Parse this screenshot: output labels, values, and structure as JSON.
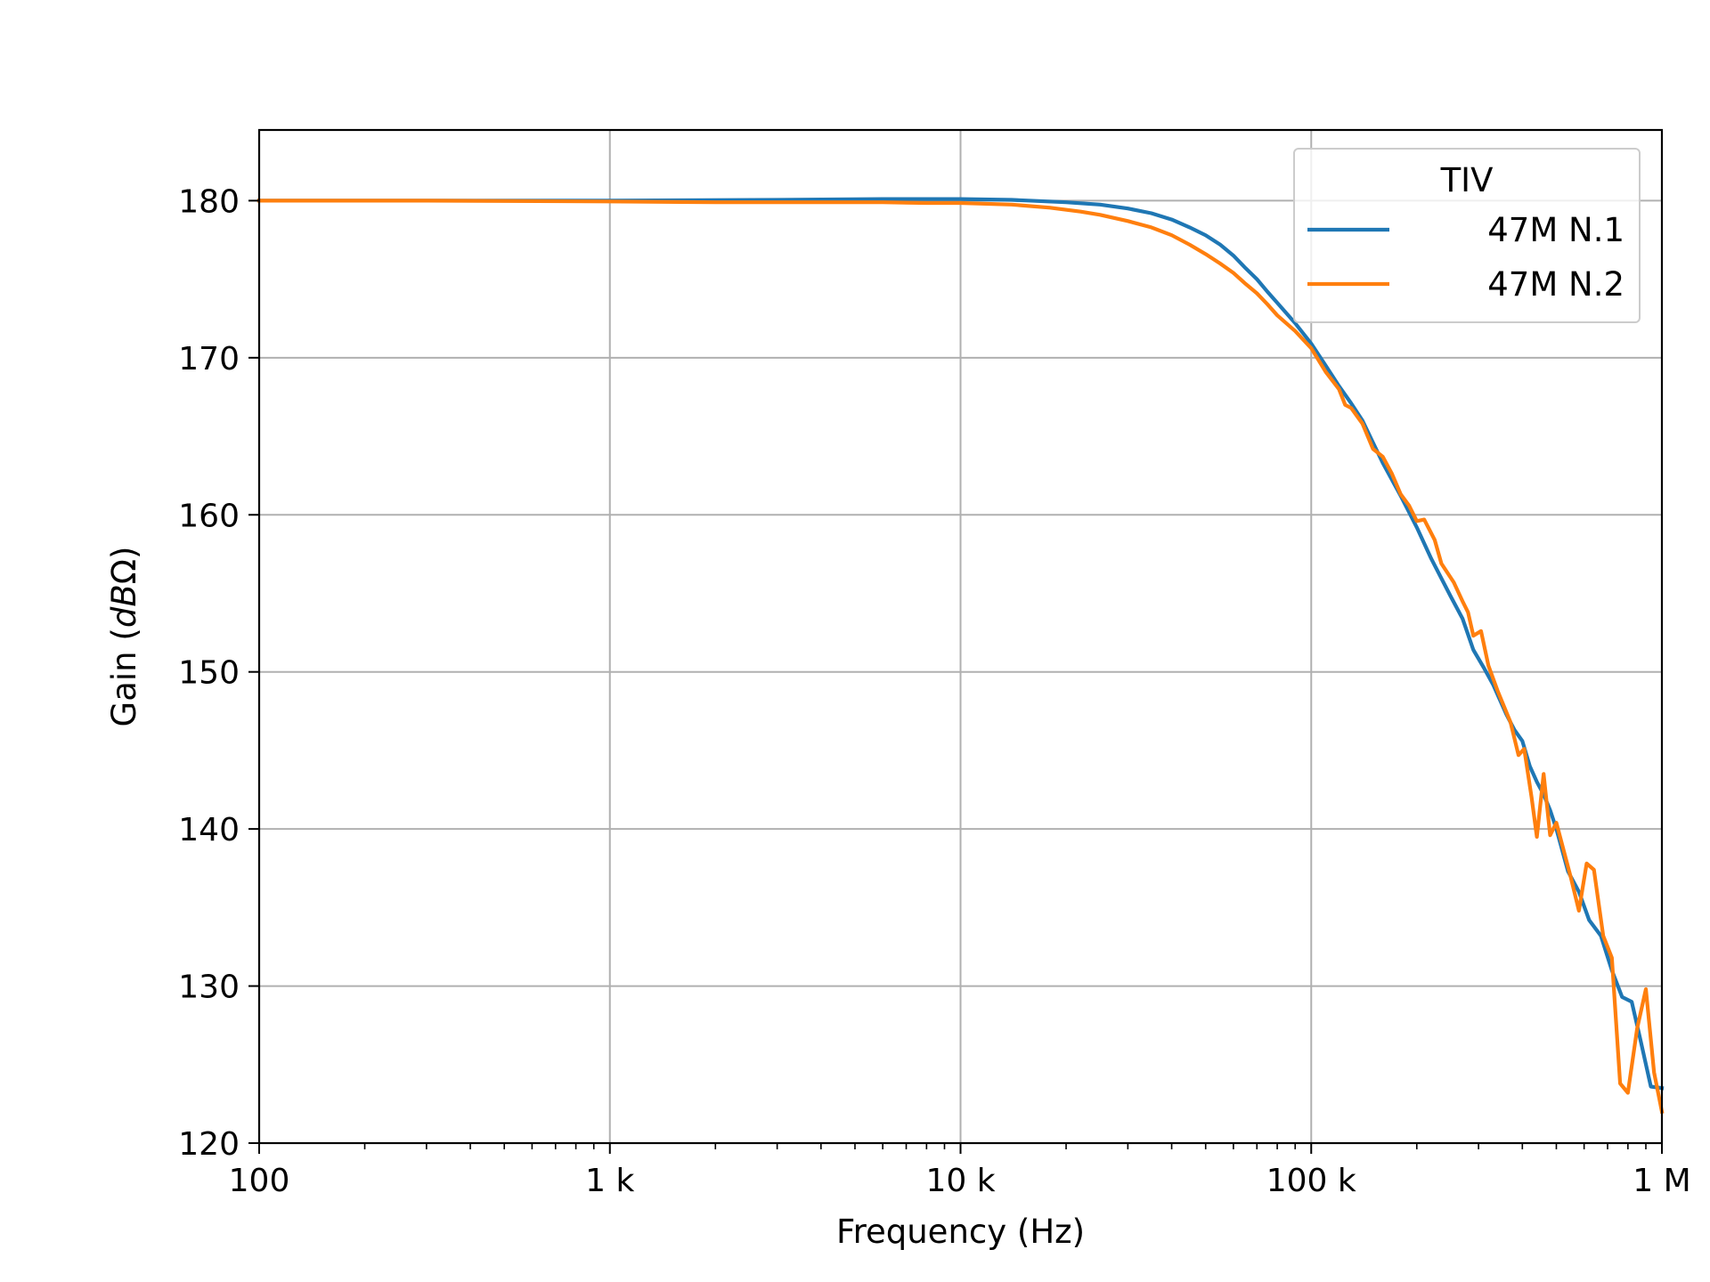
{
  "chart_data": {
    "type": "line",
    "title": "",
    "xlabel": "Frequency (Hz)",
    "ylabel_main": "Gain (",
    "ylabel_italic": "dB",
    "ylabel_tail": "Ω)",
    "x_scale": "log",
    "xlim": [
      100,
      1000000
    ],
    "ylim": [
      120,
      184.5
    ],
    "grid": true,
    "x_ticks": [
      {
        "value": 100,
        "label": "100"
      },
      {
        "value": 1000,
        "label": "1 k"
      },
      {
        "value": 10000,
        "label": "10 k"
      },
      {
        "value": 100000,
        "label": "100 k"
      },
      {
        "value": 1000000,
        "label": "1 M"
      }
    ],
    "y_ticks": [
      {
        "value": 120,
        "label": "120"
      },
      {
        "value": 130,
        "label": "130"
      },
      {
        "value": 140,
        "label": "140"
      },
      {
        "value": 150,
        "label": "150"
      },
      {
        "value": 160,
        "label": "160"
      },
      {
        "value": 170,
        "label": "170"
      },
      {
        "value": 180,
        "label": "180"
      }
    ],
    "legend": {
      "title": "TIV",
      "placement": "upper right"
    },
    "series": [
      {
        "name": "47M N.1",
        "color": "#1f77b4",
        "points": [
          [
            100,
            180.0
          ],
          [
            300,
            180.0
          ],
          [
            1000,
            180.0
          ],
          [
            3000,
            180.05
          ],
          [
            6000,
            180.1
          ],
          [
            10000,
            180.1
          ],
          [
            14000,
            180.05
          ],
          [
            20000,
            179.9
          ],
          [
            25000,
            179.75
          ],
          [
            30000,
            179.5
          ],
          [
            35000,
            179.2
          ],
          [
            40000,
            178.8
          ],
          [
            45000,
            178.3
          ],
          [
            50000,
            177.8
          ],
          [
            55000,
            177.2
          ],
          [
            60000,
            176.5
          ],
          [
            65000,
            175.7
          ],
          [
            70000,
            175.0
          ],
          [
            75000,
            174.2
          ],
          [
            80000,
            173.5
          ],
          [
            90000,
            172.2
          ],
          [
            100000,
            170.9
          ],
          [
            110000,
            169.5
          ],
          [
            120000,
            168.2
          ],
          [
            130000,
            167.1
          ],
          [
            140000,
            166.0
          ],
          [
            150000,
            164.6
          ],
          [
            160000,
            163.3
          ],
          [
            180000,
            161.2
          ],
          [
            200000,
            159.2
          ],
          [
            220000,
            157.2
          ],
          [
            250000,
            154.8
          ],
          [
            270000,
            153.4
          ],
          [
            290000,
            151.4
          ],
          [
            310000,
            150.3
          ],
          [
            330000,
            149.2
          ],
          [
            360000,
            147.3
          ],
          [
            380000,
            146.3
          ],
          [
            400000,
            145.6
          ],
          [
            420000,
            144.0
          ],
          [
            440000,
            143.0
          ],
          [
            460000,
            142.2
          ],
          [
            480000,
            141.2
          ],
          [
            500000,
            140.0
          ],
          [
            540000,
            137.3
          ],
          [
            580000,
            136.0
          ],
          [
            620000,
            134.2
          ],
          [
            670000,
            133.2
          ],
          [
            720000,
            131.0
          ],
          [
            770000,
            129.3
          ],
          [
            820000,
            129.0
          ],
          [
            870000,
            126.5
          ],
          [
            930000,
            123.6
          ],
          [
            1000000,
            123.5
          ]
        ]
      },
      {
        "name": "47M N.2",
        "color": "#ff7f0e",
        "points": [
          [
            100,
            180.0
          ],
          [
            300,
            180.0
          ],
          [
            1000,
            179.95
          ],
          [
            2000,
            179.9
          ],
          [
            3000,
            179.9
          ],
          [
            6000,
            179.9
          ],
          [
            8000,
            179.85
          ],
          [
            10000,
            179.85
          ],
          [
            14000,
            179.75
          ],
          [
            18000,
            179.55
          ],
          [
            22000,
            179.3
          ],
          [
            25000,
            179.1
          ],
          [
            30000,
            178.7
          ],
          [
            35000,
            178.3
          ],
          [
            40000,
            177.8
          ],
          [
            45000,
            177.2
          ],
          [
            50000,
            176.6
          ],
          [
            55000,
            176.0
          ],
          [
            60000,
            175.4
          ],
          [
            65000,
            174.7
          ],
          [
            70000,
            174.1
          ],
          [
            75000,
            173.4
          ],
          [
            80000,
            172.7
          ],
          [
            90000,
            171.7
          ],
          [
            100000,
            170.6
          ],
          [
            110000,
            169.1
          ],
          [
            120000,
            168.0
          ],
          [
            125000,
            167.0
          ],
          [
            130000,
            166.8
          ],
          [
            140000,
            165.8
          ],
          [
            150000,
            164.2
          ],
          [
            160000,
            163.7
          ],
          [
            170000,
            162.6
          ],
          [
            180000,
            161.3
          ],
          [
            190000,
            160.6
          ],
          [
            200000,
            159.6
          ],
          [
            210000,
            159.7
          ],
          [
            225000,
            158.4
          ],
          [
            235000,
            156.9
          ],
          [
            255000,
            155.7
          ],
          [
            270000,
            154.5
          ],
          [
            280000,
            153.8
          ],
          [
            290000,
            152.3
          ],
          [
            305000,
            152.6
          ],
          [
            320000,
            150.4
          ],
          [
            340000,
            148.8
          ],
          [
            370000,
            146.8
          ],
          [
            390000,
            144.7
          ],
          [
            405000,
            145.1
          ],
          [
            425000,
            142.0
          ],
          [
            440000,
            139.5
          ],
          [
            460000,
            143.5
          ],
          [
            480000,
            139.6
          ],
          [
            500000,
            140.4
          ],
          [
            550000,
            136.9
          ],
          [
            580000,
            134.8
          ],
          [
            610000,
            137.8
          ],
          [
            640000,
            137.4
          ],
          [
            680000,
            133.2
          ],
          [
            720000,
            131.8
          ],
          [
            760000,
            123.8
          ],
          [
            800000,
            123.2
          ],
          [
            850000,
            127.3
          ],
          [
            900000,
            129.8
          ],
          [
            950000,
            124.5
          ],
          [
            1000000,
            122.0
          ]
        ]
      }
    ]
  }
}
